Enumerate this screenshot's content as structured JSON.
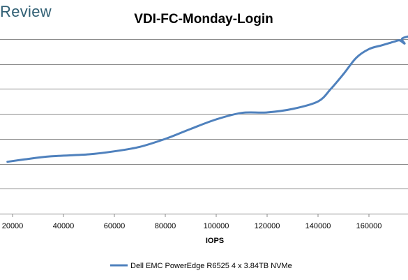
{
  "watermark": "Review",
  "chart_data": {
    "type": "line",
    "title": "VDI-FC-Monday-Login",
    "xlabel": "IOPS",
    "ylabel": "",
    "xlim": [
      20000,
      176000
    ],
    "ylim": [
      0,
      7
    ],
    "x_ticks": [
      20000,
      40000,
      60000,
      80000,
      100000,
      120000,
      140000,
      160000
    ],
    "x_tick_labels": [
      "20000",
      "40000",
      "60000",
      "80000",
      "100000",
      "120000",
      "140000",
      "160000"
    ],
    "y_gridlines": [
      1,
      2,
      3,
      4,
      5,
      6,
      7
    ],
    "grid": true,
    "legend_position": "bottom",
    "series": [
      {
        "name": "Dell EMC PowerEdge R6525 4 x 3.84TB NVMe",
        "color": "#4f81bd",
        "points": [
          [
            18000,
            2.08
          ],
          [
            25000,
            2.18
          ],
          [
            35000,
            2.3
          ],
          [
            50000,
            2.38
          ],
          [
            60000,
            2.5
          ],
          [
            70000,
            2.68
          ],
          [
            80000,
            3.0
          ],
          [
            90000,
            3.4
          ],
          [
            100000,
            3.78
          ],
          [
            110000,
            4.04
          ],
          [
            120000,
            4.06
          ],
          [
            130000,
            4.2
          ],
          [
            140000,
            4.5
          ],
          [
            145000,
            5.0
          ],
          [
            150000,
            5.6
          ],
          [
            155000,
            6.25
          ],
          [
            160000,
            6.6
          ],
          [
            165000,
            6.75
          ],
          [
            168000,
            6.84
          ],
          [
            170000,
            6.9
          ],
          [
            172000,
            6.95
          ],
          [
            174000,
            6.82
          ],
          [
            173000,
            7.02
          ],
          [
            176000,
            7.12
          ]
        ]
      }
    ]
  }
}
